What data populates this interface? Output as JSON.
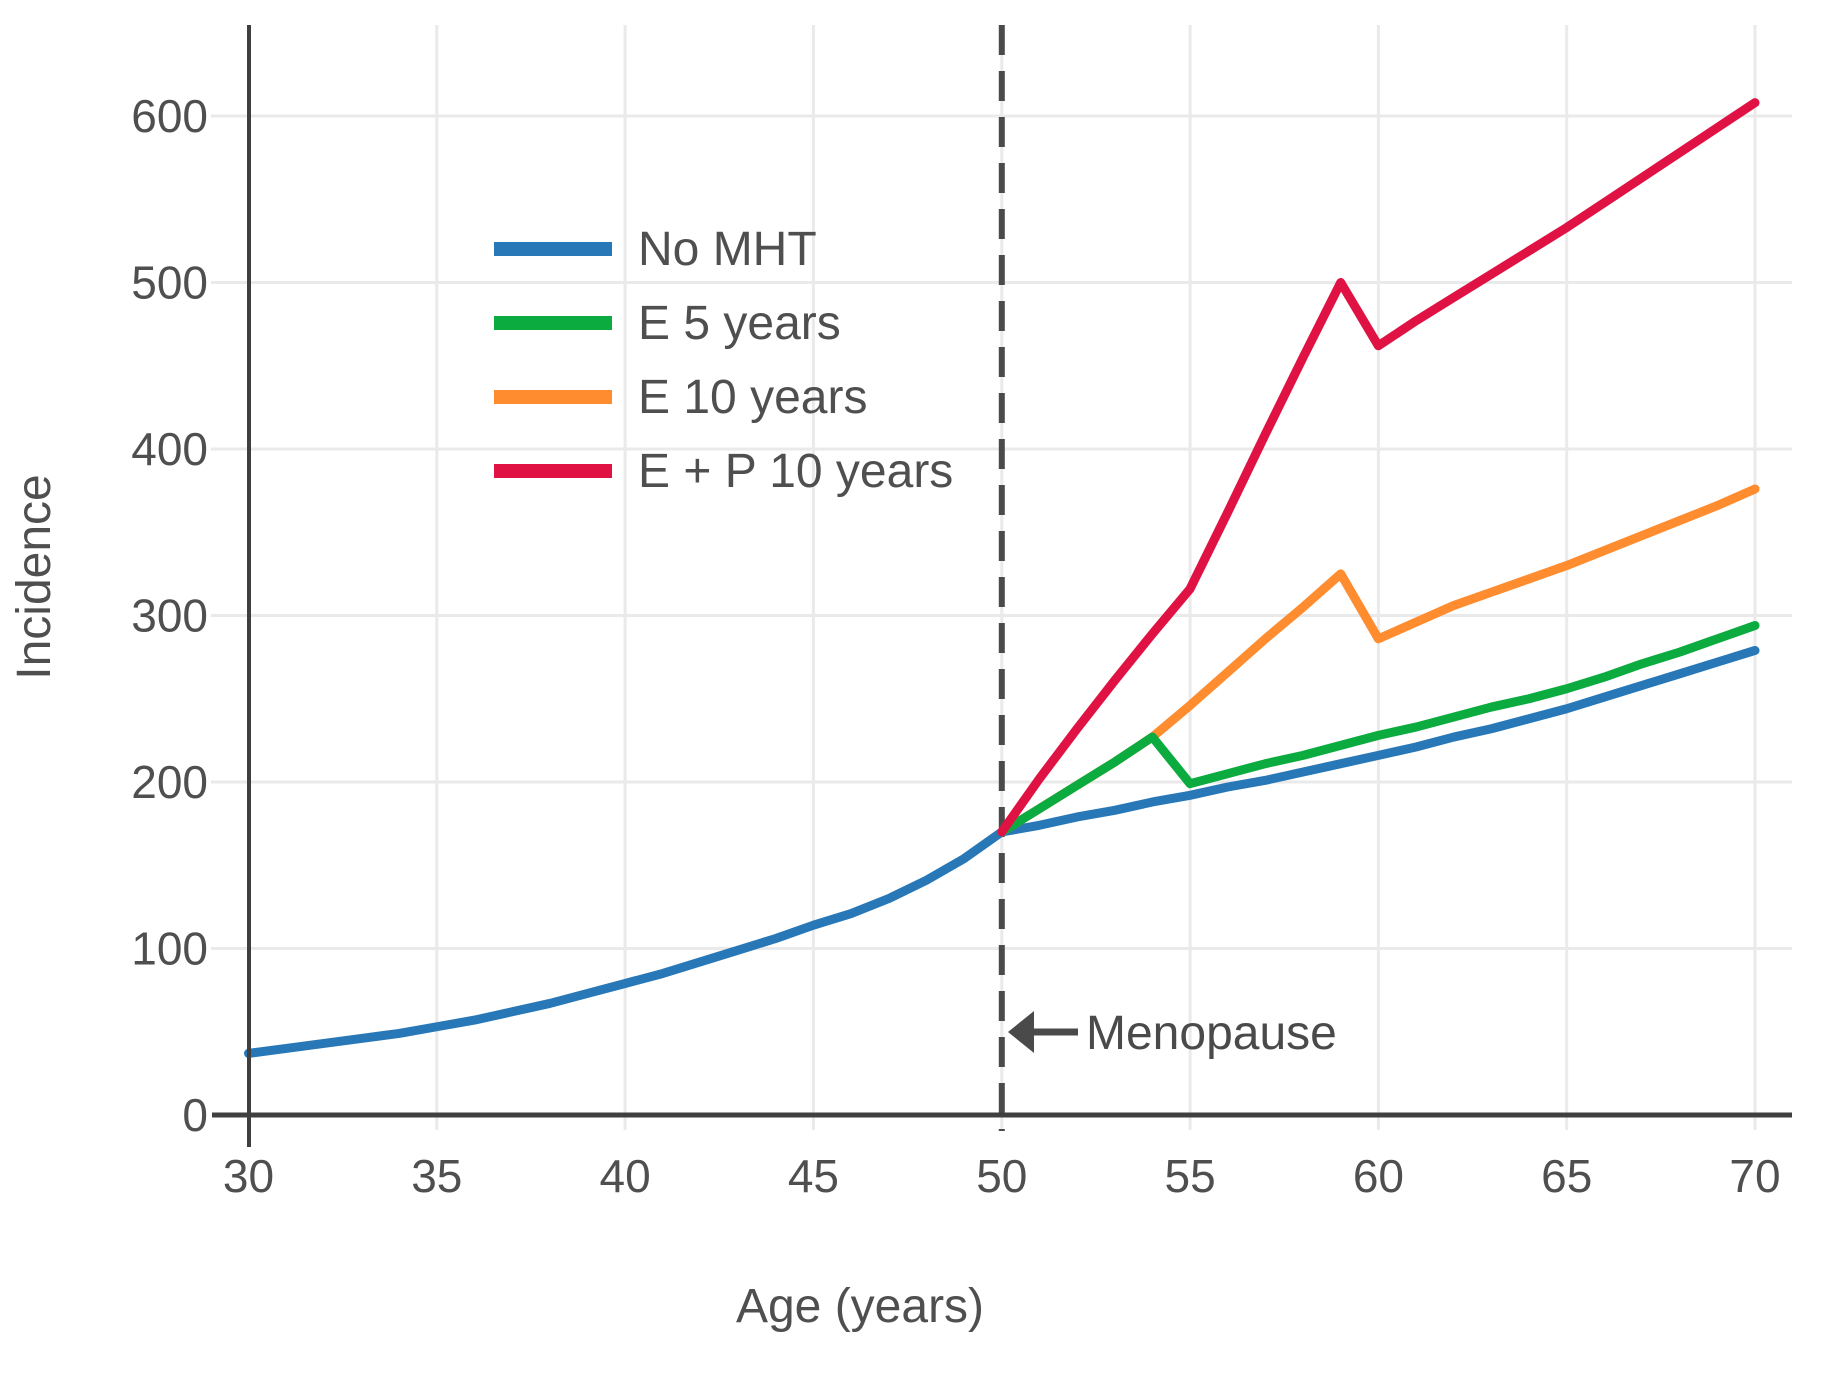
{
  "figure": {
    "background": "#FFFFFF",
    "axis_color": "#3F3F3F",
    "grid_color": "#EAEAEA",
    "text_color": "#4F4F4F",
    "annotation_color": "#4A4A4A"
  },
  "annotation": {
    "text": "Menopause",
    "arrow_icon": "left-arrow-icon"
  },
  "chart_data": {
    "type": "line",
    "title": "",
    "xlabel": "Age (years)",
    "ylabel": "Incidence",
    "xlim": [
      30,
      71
    ],
    "ylim": [
      0,
      655
    ],
    "x_ticks": [
      30,
      35,
      40,
      45,
      50,
      55,
      60,
      65,
      70
    ],
    "y_ticks": [
      0,
      100,
      200,
      300,
      400,
      500,
      600
    ],
    "grid": true,
    "legend_position": "upper-left-inside",
    "menopause_line_x": 50,
    "annotation": {
      "text": "Menopause",
      "x": 50,
      "y": 50
    },
    "series": [
      {
        "name": "No MHT",
        "color": "#2878B8",
        "x": [
          30,
          31,
          32,
          33,
          34,
          35,
          36,
          37,
          38,
          39,
          40,
          41,
          42,
          43,
          44,
          45,
          46,
          47,
          48,
          49,
          50,
          51,
          52,
          53,
          54,
          55,
          56,
          57,
          58,
          59,
          60,
          61,
          62,
          63,
          64,
          65,
          66,
          67,
          68,
          69,
          70
        ],
        "y": [
          37,
          40,
          43,
          46,
          49,
          53,
          57,
          62,
          67,
          73,
          79,
          85,
          92,
          99,
          106,
          114,
          121,
          130,
          141,
          154,
          170,
          174,
          179,
          183,
          188,
          192,
          197,
          201,
          206,
          211,
          216,
          221,
          227,
          232,
          238,
          244,
          251,
          258,
          265,
          272,
          279
        ]
      },
      {
        "name": "E 5 years",
        "color": "#0CAB40",
        "x": [
          50,
          51,
          52,
          53,
          54,
          55,
          56,
          57,
          58,
          59,
          60,
          61,
          62,
          63,
          64,
          65,
          66,
          67,
          68,
          69,
          70
        ],
        "y": [
          170,
          184,
          198,
          212,
          227,
          199,
          205,
          211,
          216,
          222,
          228,
          233,
          239,
          245,
          250,
          256,
          263,
          271,
          278,
          286,
          294
        ]
      },
      {
        "name": "E 10 years",
        "color": "#FF8C2E",
        "x": [
          50,
          51,
          52,
          53,
          54,
          55,
          56,
          57,
          58,
          59,
          60,
          61,
          62,
          63,
          64,
          65,
          66,
          67,
          68,
          69,
          70
        ],
        "y": [
          170,
          184,
          198,
          212,
          227,
          246,
          266,
          286,
          305,
          325,
          286,
          296,
          306,
          314,
          322,
          330,
          339,
          348,
          357,
          366,
          376
        ]
      },
      {
        "name": "E + P 10 years",
        "color": "#E01243",
        "x": [
          50,
          51,
          52,
          53,
          54,
          55,
          56,
          57,
          58,
          59,
          60,
          61,
          62,
          63,
          64,
          65,
          66,
          67,
          68,
          69,
          70
        ],
        "y": [
          170,
          202,
          232,
          261,
          289,
          316,
          362,
          409,
          455,
          500,
          462,
          477,
          491,
          505,
          519,
          533,
          548,
          563,
          578,
          593,
          608
        ]
      }
    ]
  }
}
